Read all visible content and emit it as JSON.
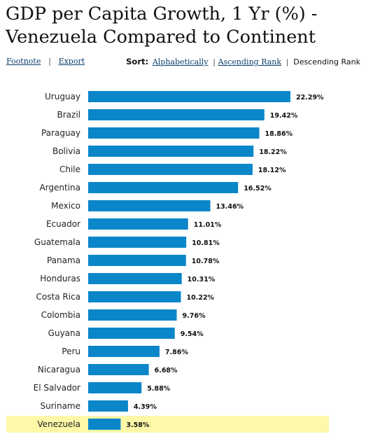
{
  "title": "GDP per Capita Growth, 1 Yr (%) - Venezuela Compared to Continent",
  "toolbar": {
    "footnote": "Footnote",
    "export": "Export",
    "sort_label": "Sort:",
    "sort_alpha": "Alphabetically",
    "sort_asc": "Ascending Rank",
    "sort_desc": "Descending Rank",
    "divider": "|"
  },
  "colors": {
    "bar": "#0a86c9",
    "highlight_bg": "#fdf9a8"
  },
  "chart_data": {
    "type": "bar",
    "orientation": "horizontal",
    "categories": [
      "Uruguay",
      "Brazil",
      "Paraguay",
      "Bolivia",
      "Chile",
      "Argentina",
      "Mexico",
      "Ecuador",
      "Guatemala",
      "Panama",
      "Honduras",
      "Costa Rica",
      "Colombia",
      "Guyana",
      "Peru",
      "Nicaragua",
      "El Salvador",
      "Suriname",
      "Venezuela"
    ],
    "values": [
      22.29,
      19.42,
      18.86,
      18.22,
      18.12,
      16.52,
      13.46,
      11.01,
      10.81,
      10.78,
      10.31,
      10.22,
      9.76,
      9.54,
      7.86,
      6.68,
      5.88,
      4.39,
      3.58
    ],
    "value_labels": [
      "22.29%",
      "19.42%",
      "18.86%",
      "18.22%",
      "18.12%",
      "16.52%",
      "13.46%",
      "11.01%",
      "10.81%",
      "10.78%",
      "10.31%",
      "10.22%",
      "9.76%",
      "9.54%",
      "7.86%",
      "6.68%",
      "5.88%",
      "4.39%",
      "3.58%"
    ],
    "highlight": "Venezuela",
    "xlim": [
      0,
      22.29
    ],
    "grid": false,
    "legend": "none"
  }
}
